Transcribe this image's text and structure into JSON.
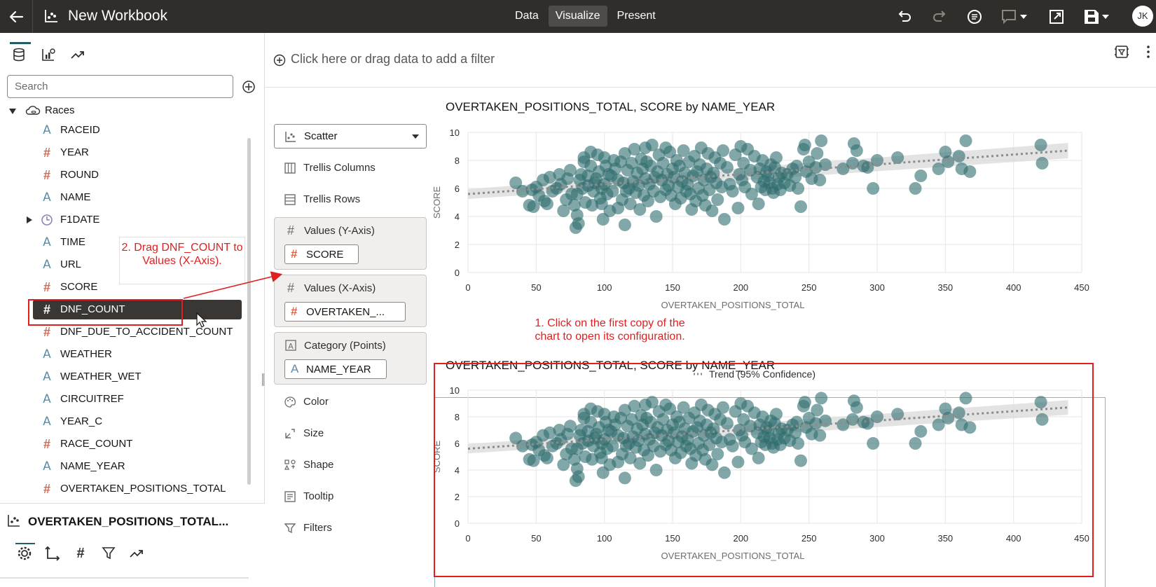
{
  "header": {
    "title": "New Workbook",
    "modes": [
      {
        "label": "Data",
        "active": false
      },
      {
        "label": "Visualize",
        "active": true
      },
      {
        "label": "Present",
        "active": false
      }
    ],
    "avatar": "JK",
    "icons": [
      "back-arrow-icon",
      "workbook-icon",
      "undo-icon",
      "redo-icon",
      "narrate-icon",
      "comment-icon",
      "present-expand-icon",
      "save-icon"
    ]
  },
  "data_panel": {
    "search_placeholder": "Search",
    "source": "Races",
    "columns": [
      {
        "type": "attribute",
        "name": "RACEID"
      },
      {
        "type": "measure",
        "name": "YEAR"
      },
      {
        "type": "measure",
        "name": "ROUND"
      },
      {
        "type": "attribute",
        "name": "NAME"
      },
      {
        "type": "date",
        "name": "F1DATE"
      },
      {
        "type": "attribute",
        "name": "TIME"
      },
      {
        "type": "attribute",
        "name": "URL"
      },
      {
        "type": "measure",
        "name": "SCORE"
      },
      {
        "type": "measure",
        "name": "DNF_COUNT",
        "selected": true
      },
      {
        "type": "measure",
        "name": "DNF_DUE_TO_ACCIDENT_COUNT"
      },
      {
        "type": "attribute",
        "name": "WEATHER"
      },
      {
        "type": "attribute",
        "name": "WEATHER_WET"
      },
      {
        "type": "attribute",
        "name": "CIRCUITREF"
      },
      {
        "type": "attribute",
        "name": "YEAR_C"
      },
      {
        "type": "measure",
        "name": "RACE_COUNT"
      },
      {
        "type": "attribute",
        "name": "NAME_YEAR"
      },
      {
        "type": "measure",
        "name": "OVERTAKEN_POSITIONS_TOTAL"
      }
    ],
    "properties_title": "OVERTAKEN_POSITIONS_TOTAL..."
  },
  "filter_bar": {
    "placeholder": "Click here or drag data to add a filter"
  },
  "grammar": {
    "viz_type": "Scatter",
    "trellis_columns": "Trellis Columns",
    "trellis_rows": "Trellis Rows",
    "y_axis": {
      "label": "Values (Y-Axis)",
      "value": "SCORE"
    },
    "x_axis": {
      "label": "Values (X-Axis)",
      "value": "OVERTAKEN_..."
    },
    "category": {
      "label": "Category (Points)",
      "value": "NAME_YEAR"
    },
    "color": "Color",
    "size": "Size",
    "shape": "Shape",
    "tooltip": "Tooltip",
    "filters": "Filters"
  },
  "annotations": {
    "drag_callout": "2. Drag DNF_COUNT to Values (X-Axis).",
    "click_callout": "1. Click on the first copy of the chart to open its configuration."
  },
  "colors": {
    "topbar": "#312d2a",
    "point": "#2f6d6e",
    "trend": "#8c8c8c",
    "annotation_red": "#e02020"
  },
  "chart_data": [
    {
      "type": "scatter",
      "title": "OVERTAKEN_POSITIONS_TOTAL, SCORE by NAME_YEAR",
      "xlabel": "OVERTAKEN_POSITIONS_TOTAL",
      "ylabel": "SCORE",
      "xlim": [
        0,
        450
      ],
      "ylim": [
        0,
        10
      ],
      "xticks": [
        "0",
        "50",
        "100",
        "150",
        "200",
        "250",
        "300",
        "350",
        "400",
        "450"
      ],
      "yticks": [
        "0",
        "2",
        "4",
        "6",
        "8",
        "10"
      ],
      "grid": true,
      "legend": {
        "position": "bottom-center",
        "entries": [
          "Trend (95% Confidence)"
        ]
      },
      "trend": {
        "x": [
          0,
          440
        ],
        "y": [
          5.6,
          8.7
        ]
      },
      "points": [
        [
          35,
          6.4
        ],
        [
          40,
          5.8
        ],
        [
          45,
          4.8
        ],
        [
          47,
          5.9
        ],
        [
          48,
          4.7
        ],
        [
          50,
          6.1
        ],
        [
          52,
          5.5
        ],
        [
          55,
          6.6
        ],
        [
          56,
          5.1
        ],
        [
          58,
          4.9
        ],
        [
          60,
          6.8
        ],
        [
          62,
          5.8
        ],
        [
          65,
          6.0
        ],
        [
          67,
          7.0
        ],
        [
          68,
          6.3
        ],
        [
          70,
          4.4
        ],
        [
          72,
          5.2
        ],
        [
          73,
          6.7
        ],
        [
          75,
          7.3
        ],
        [
          76,
          5.6
        ],
        [
          78,
          4.8
        ],
        [
          79,
          3.2
        ],
        [
          80,
          4.1
        ],
        [
          80,
          5.6
        ],
        [
          81,
          3.5
        ],
        [
          82,
          6.6
        ],
        [
          83,
          7.0
        ],
        [
          84,
          6.0
        ],
        [
          85,
          7.9
        ],
        [
          85,
          8.2
        ],
        [
          86,
          5.0
        ],
        [
          88,
          6.2
        ],
        [
          88,
          6.9
        ],
        [
          90,
          8.6
        ],
        [
          90,
          7.6
        ],
        [
          91,
          4.8
        ],
        [
          92,
          5.8
        ],
        [
          93,
          6.4
        ],
        [
          94,
          6.7
        ],
        [
          95,
          8.4
        ],
        [
          96,
          7.2
        ],
        [
          97,
          5.3
        ],
        [
          98,
          4.9
        ],
        [
          98,
          6.0
        ],
        [
          99,
          3.8
        ],
        [
          100,
          8.2
        ],
        [
          100,
          6.3
        ],
        [
          101,
          7.6
        ],
        [
          102,
          5.6
        ],
        [
          103,
          7.0
        ],
        [
          104,
          4.4
        ],
        [
          105,
          6.9
        ],
        [
          106,
          5.8
        ],
        [
          107,
          8.0
        ],
        [
          108,
          7.4
        ],
        [
          110,
          6.6
        ],
        [
          110,
          4.6
        ],
        [
          112,
          7.9
        ],
        [
          113,
          5.2
        ],
        [
          114,
          6.4
        ],
        [
          115,
          8.5
        ],
        [
          115,
          3.4
        ],
        [
          116,
          5.8
        ],
        [
          117,
          7.3
        ],
        [
          118,
          6.0
        ],
        [
          119,
          4.9
        ],
        [
          120,
          7.8
        ],
        [
          121,
          6.5
        ],
        [
          122,
          8.8
        ],
        [
          123,
          5.7
        ],
        [
          124,
          7.1
        ],
        [
          125,
          6.2
        ],
        [
          126,
          4.5
        ],
        [
          127,
          8.1
        ],
        [
          128,
          7.4
        ],
        [
          129,
          5.5
        ],
        [
          130,
          6.7
        ],
        [
          130,
          8.9
        ],
        [
          131,
          7.9
        ],
        [
          132,
          5.1
        ],
        [
          133,
          6.3
        ],
        [
          134,
          7.6
        ],
        [
          135,
          9.1
        ],
        [
          136,
          5.8
        ],
        [
          137,
          6.8
        ],
        [
          138,
          4.0
        ],
        [
          139,
          7.2
        ],
        [
          140,
          8.4
        ],
        [
          141,
          5.4
        ],
        [
          142,
          6.6
        ],
        [
          143,
          7.8
        ],
        [
          145,
          8.9
        ],
        [
          145,
          5.9
        ],
        [
          146,
          7.0
        ],
        [
          147,
          6.2
        ],
        [
          148,
          8.6
        ],
        [
          149,
          5.5
        ],
        [
          150,
          7.4
        ],
        [
          151,
          6.8
        ],
        [
          152,
          4.9
        ],
        [
          153,
          8.0
        ],
        [
          154,
          6.1
        ],
        [
          155,
          7.6
        ],
        [
          156,
          5.3
        ],
        [
          157,
          6.5
        ],
        [
          158,
          8.7
        ],
        [
          159,
          7.1
        ],
        [
          160,
          5.8
        ],
        [
          161,
          6.3
        ],
        [
          162,
          7.9
        ],
        [
          163,
          5.6
        ],
        [
          164,
          4.5
        ],
        [
          165,
          6.9
        ],
        [
          166,
          8.3
        ],
        [
          167,
          5.1
        ],
        [
          168,
          7.2
        ],
        [
          169,
          6.0
        ],
        [
          170,
          7.7
        ],
        [
          171,
          8.9
        ],
        [
          172,
          5.5
        ],
        [
          173,
          6.6
        ],
        [
          174,
          4.8
        ],
        [
          175,
          7.4
        ],
        [
          176,
          8.5
        ],
        [
          177,
          5.9
        ],
        [
          178,
          6.8
        ],
        [
          179,
          4.4
        ],
        [
          180,
          7.1
        ],
        [
          181,
          8.2
        ],
        [
          182,
          6.4
        ],
        [
          183,
          5.2
        ],
        [
          185,
          7.8
        ],
        [
          186,
          6.1
        ],
        [
          187,
          8.7
        ],
        [
          188,
          3.8
        ],
        [
          190,
          7.5
        ],
        [
          192,
          6.3
        ],
        [
          194,
          5.8
        ],
        [
          196,
          8.4
        ],
        [
          198,
          4.6
        ],
        [
          199,
          7.0
        ],
        [
          200,
          9.0
        ],
        [
          201,
          6.6
        ],
        [
          202,
          7.8
        ],
        [
          203,
          6.1
        ],
        [
          205,
          8.8
        ],
        [
          207,
          7.3
        ],
        [
          208,
          5.6
        ],
        [
          210,
          8.3
        ],
        [
          212,
          6.8
        ],
        [
          213,
          4.9
        ],
        [
          214,
          7.4
        ],
        [
          215,
          6.1
        ],
        [
          216,
          8.0
        ],
        [
          217,
          6.5
        ],
        [
          218,
          5.9
        ],
        [
          219,
          7.2
        ],
        [
          220,
          6.9
        ],
        [
          221,
          6.4
        ],
        [
          222,
          7.7
        ],
        [
          223,
          6.0
        ],
        [
          224,
          5.7
        ],
        [
          225,
          7.5
        ],
        [
          226,
          8.2
        ],
        [
          227,
          6.3
        ],
        [
          228,
          6.8
        ],
        [
          229,
          5.9
        ],
        [
          230,
          7.1
        ],
        [
          232,
          6.4
        ],
        [
          234,
          7.0
        ],
        [
          236,
          6.2
        ],
        [
          238,
          7.4
        ],
        [
          240,
          6.8
        ],
        [
          241,
          7.6
        ],
        [
          242,
          6.0
        ],
        [
          244,
          4.7
        ],
        [
          246,
          8.8
        ],
        [
          247,
          9.1
        ],
        [
          248,
          7.2
        ],
        [
          250,
          7.9
        ],
        [
          252,
          6.7
        ],
        [
          255,
          7.5
        ],
        [
          256,
          8.5
        ],
        [
          258,
          6.6
        ],
        [
          259,
          9.4
        ],
        [
          262,
          7.7
        ],
        [
          275,
          7.4
        ],
        [
          282,
          7.8
        ],
        [
          283,
          9.2
        ],
        [
          285,
          8.7
        ],
        [
          290,
          7.6
        ],
        [
          293,
          7.5
        ],
        [
          297,
          6.0
        ],
        [
          300,
          8.0
        ],
        [
          315,
          8.2
        ],
        [
          328,
          6.0
        ],
        [
          332,
          6.9
        ],
        [
          345,
          7.4
        ],
        [
          350,
          8.6
        ],
        [
          352,
          7.9
        ],
        [
          360,
          8.3
        ],
        [
          362,
          7.4
        ],
        [
          365,
          9.4
        ],
        [
          368,
          7.2
        ],
        [
          420,
          9.1
        ],
        [
          421,
          7.8
        ]
      ]
    },
    {
      "type": "scatter",
      "title": "OVERTAKEN_POSITIONS_TOTAL, SCORE by NAME_YEAR",
      "xlabel": "OVERTAKEN_POSITIONS_TOTAL",
      "ylabel": "SCORE",
      "xlim": [
        0,
        450
      ],
      "ylim": [
        0,
        10
      ],
      "xticks": [
        "0",
        "50",
        "100",
        "150",
        "200",
        "250",
        "300",
        "350",
        "400",
        "450"
      ],
      "yticks": [
        "0",
        "2",
        "4",
        "6",
        "8",
        "10"
      ],
      "grid": true,
      "same_points_as_chart": 0
    }
  ]
}
